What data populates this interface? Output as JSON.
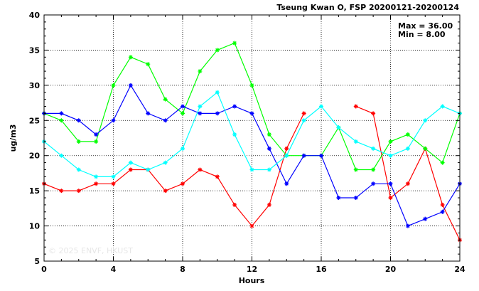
{
  "chart_data": {
    "type": "line",
    "title": "Tseung Kwan O, FSP 20200121-20200124",
    "xlabel": "Hours",
    "ylabel": "ug/m3",
    "xlim": [
      0,
      24
    ],
    "ylim": [
      5,
      40
    ],
    "xticks": [
      0,
      4,
      8,
      12,
      16,
      20,
      24
    ],
    "yticks": [
      5,
      10,
      15,
      20,
      25,
      30,
      35,
      40
    ],
    "grid": true,
    "stats": {
      "max": "Max = 36.00",
      "min": "Min =  8.00"
    },
    "watermark": "© 2025  ENVF, HKUST",
    "x": [
      0,
      1,
      2,
      3,
      4,
      5,
      6,
      7,
      8,
      9,
      10,
      11,
      12,
      13,
      14,
      15,
      16,
      17,
      18,
      19,
      20,
      21,
      22,
      23,
      24
    ],
    "series": [
      {
        "color": "#ff0000",
        "values": [
          16,
          15,
          15,
          16,
          16,
          18,
          18,
          15,
          16,
          18,
          17,
          13,
          10,
          13,
          21,
          26,
          null,
          null,
          27,
          26,
          14,
          16,
          21,
          13,
          8
        ]
      },
      {
        "color": "#00ff00",
        "values": [
          26,
          25,
          22,
          22,
          30,
          34,
          33,
          28,
          26,
          32,
          35,
          36,
          30,
          23,
          20,
          20,
          20,
          24,
          18,
          18,
          22,
          23,
          21,
          19,
          26
        ]
      },
      {
        "color": "#0000ff",
        "values": [
          26,
          26,
          25,
          23,
          25,
          30,
          26,
          25,
          27,
          26,
          26,
          27,
          26,
          21,
          16,
          20,
          20,
          14,
          14,
          16,
          16,
          10,
          11,
          12,
          16
        ]
      },
      {
        "color": "#00ffff",
        "values": [
          22,
          20,
          18,
          17,
          17,
          19,
          18,
          19,
          21,
          27,
          29,
          23,
          18,
          18,
          20,
          25,
          27,
          24,
          22,
          21,
          20,
          21,
          25,
          27,
          26
        ]
      }
    ]
  }
}
